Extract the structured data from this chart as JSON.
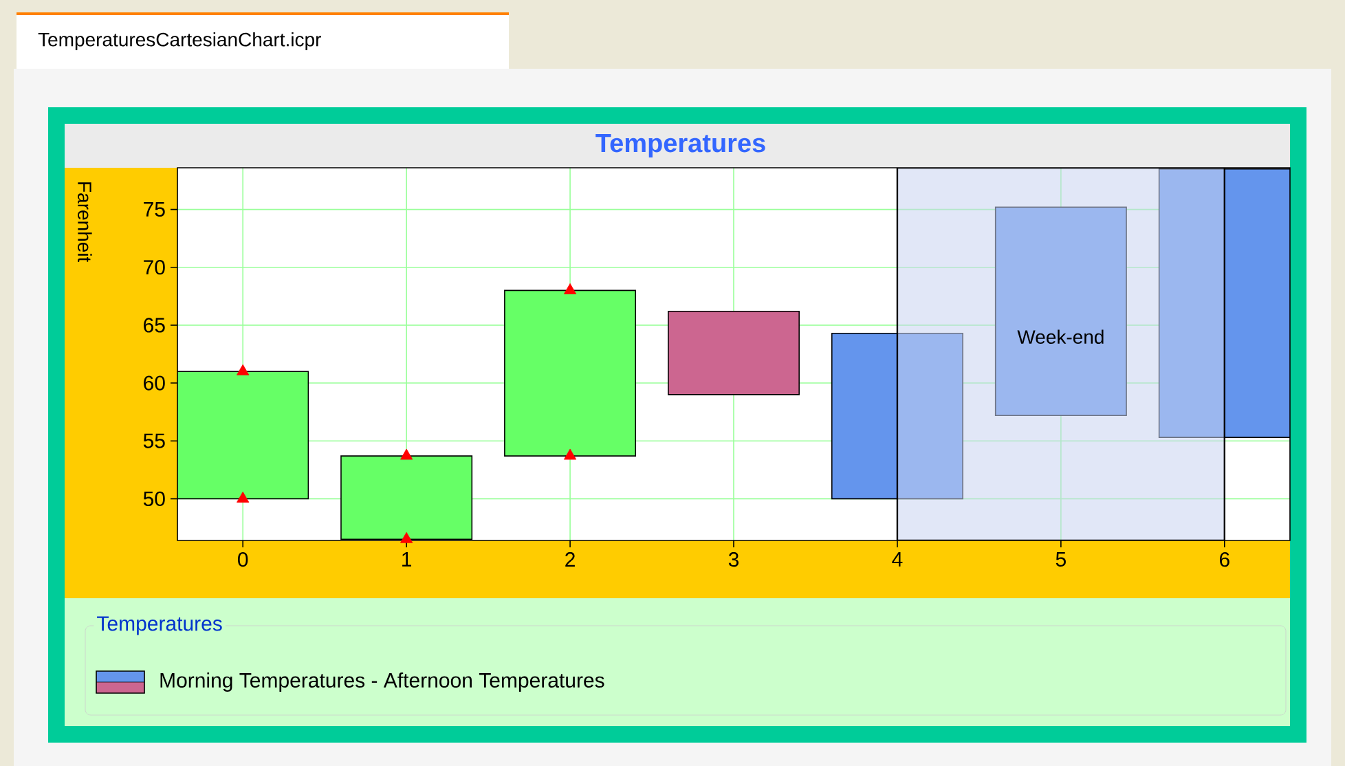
{
  "chart_data": {
    "type": "bar",
    "title": "Temperatures",
    "ylabel": "Farenheit",
    "legend_title": "Temperatures",
    "annotations": [
      "TemperaturesCartesianChart.icpr"
    ],
    "x": [
      0,
      1,
      2,
      3,
      4,
      5,
      6
    ],
    "series": [
      {
        "name": "Morning Temperatures - Afternoon Temperatures",
        "base": [
          50,
          46.5,
          53.7,
          66.2,
          50,
          57.2,
          55.3
        ],
        "values": [
          11,
          7.2,
          14.3,
          -7.2,
          14.3,
          18,
          23.2
        ],
        "colors": [
          "#66ff66",
          "#66ff66",
          "#66ff66",
          "#cc6690",
          "#6495ed",
          "#6495ed",
          "#6495ed"
        ]
      },
      {
        "type": "scatter",
        "x": [
          0,
          0,
          1,
          1,
          2,
          2
        ],
        "values": [
          50,
          61,
          46.5,
          53.7,
          53.7,
          68
        ],
        "color": "#ff0000"
      }
    ],
    "marker": "triangle",
    "bands": [
      {
        "axis": "x",
        "from": 4,
        "to": 6,
        "label": "Week-end",
        "color": "#c8d4f0"
      }
    ],
    "xlim": [
      -0.4,
      6.4
    ],
    "ylim": [
      46.4,
      78.6
    ],
    "xticks": [
      0,
      1,
      2,
      3,
      4,
      5,
      6
    ],
    "yticks": [
      50,
      55,
      60,
      65,
      70,
      75
    ],
    "grid": true,
    "legend": "bottom"
  }
}
